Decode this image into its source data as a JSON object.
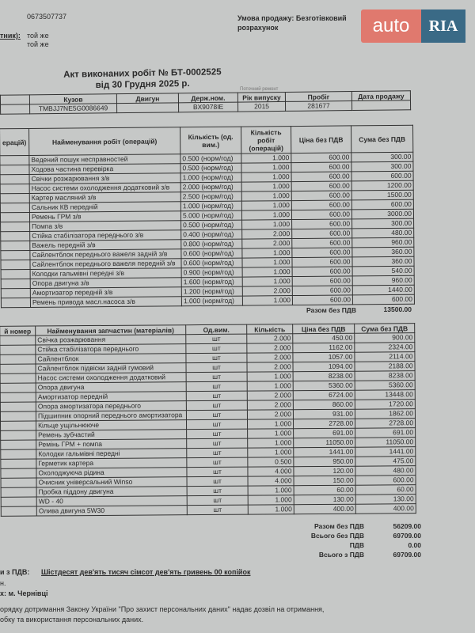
{
  "header": {
    "phone": "0673507737",
    "label_partial": "тник):",
    "payer1": "той же",
    "payer2": "той же",
    "sale_terms": "Умова продажу: Безготівковий розрахунок",
    "logo": {
      "text_left": "auto",
      "text_right": "RIA",
      "colors": {
        "left": "#e0796e",
        "right": "#3a6a86"
      }
    }
  },
  "title": {
    "line1": "Акт виконаних робіт № БТ-0002525",
    "line2": "від 30 Грудня 2025 р.",
    "note": "Поточний ремонт"
  },
  "vehicle": {
    "headers": [
      "",
      "Кузов",
      "Двигун",
      "Держ.ном.",
      "Рік випуску",
      "Пробіг",
      "Дата продажу"
    ],
    "values": [
      "",
      "TMBJJ7NE5G0086649",
      "",
      "BX9078IE",
      "2015",
      "281677",
      ""
    ]
  },
  "works": {
    "headers": [
      "ерацій)",
      "Найменування робіт (операцій)",
      "Кількість (од. вим.)",
      "Кількість робіт (операцій)",
      "Ціна без ПДВ",
      "Сума без ПДВ"
    ],
    "rows": [
      [
        "Ведений пошук несправностей",
        "0.500 (норм/год)",
        "1.000",
        "600.00",
        "300.00"
      ],
      [
        "Ходова частина перевірка",
        "0.500 (норм/год)",
        "1.000",
        "600.00",
        "300.00"
      ],
      [
        "Свічки розжарювання з/в",
        "1.000 (норм/год)",
        "1.000",
        "600.00",
        "600.00"
      ],
      [
        "Насос системи охолодження додатковий з/в",
        "2.000 (норм/год)",
        "1.000",
        "600.00",
        "1200.00"
      ],
      [
        "Картер масляний з/в",
        "2.500 (норм/год)",
        "1.000",
        "600.00",
        "1500.00"
      ],
      [
        "Сальник КВ передній",
        "1.000 (норм/год)",
        "1.000",
        "600.00",
        "600.00"
      ],
      [
        "Ремень ГРМ з/в",
        "5.000 (норм/год)",
        "1.000",
        "600.00",
        "3000.00"
      ],
      [
        "Помпа з/в",
        "0.500 (норм/год)",
        "1.000",
        "600.00",
        "300.00"
      ],
      [
        "Стійка стабілізатора переднього з/в",
        "0.400 (норм/год)",
        "2.000",
        "600.00",
        "480.00"
      ],
      [
        "Важель передній з/в",
        "0.800 (норм/год)",
        "2.000",
        "600.00",
        "960.00"
      ],
      [
        "Сайлентблок переднього важеля задній з/в",
        "0.600 (норм/год)",
        "1.000",
        "600.00",
        "360.00"
      ],
      [
        "Сайлентблок переднього важеля передній з/в",
        "0.600 (норм/год)",
        "1.000",
        "600.00",
        "360.00"
      ],
      [
        "Колодки гальмівні передні з/в",
        "0.900 (норм/год)",
        "1.000",
        "600.00",
        "540.00"
      ],
      [
        "Опора двигуна з/в",
        "1.600 (норм/год)",
        "1.000",
        "600.00",
        "960.00"
      ],
      [
        "Амортизатор передній з/в",
        "1.200 (норм/год)",
        "2.000",
        "600.00",
        "1440.00"
      ],
      [
        "Ремень привода масл.насоса з/в",
        "1.000 (норм/год)",
        "1.000",
        "600.00",
        "600.00"
      ]
    ],
    "total_label": "Разом без ПДВ",
    "total": "13500.00"
  },
  "parts": {
    "headers": [
      "й номер",
      "Найменування запчастин (матеріалів)",
      "Од.вим.",
      "Кількість",
      "Ціна без ПДВ",
      "Сума без ПДВ"
    ],
    "rows": [
      [
        "Свічка розжарювання",
        "шт",
        "2.000",
        "450.00",
        "900.00"
      ],
      [
        "Стійка стабілізатора переднього",
        "шт",
        "2.000",
        "1162.00",
        "2324.00"
      ],
      [
        "Сайлентблок",
        "шт",
        "2.000",
        "1057.00",
        "2114.00"
      ],
      [
        "Сайлентблок підвіски задній гумовий",
        "шт",
        "2.000",
        "1094.00",
        "2188.00"
      ],
      [
        "Насос системи охолодження додатковий",
        "шт",
        "1.000",
        "8238.00",
        "8238.00"
      ],
      [
        "Опора двигуна",
        "шт",
        "1.000",
        "5360.00",
        "5360.00"
      ],
      [
        "Амортизатор передній",
        "шт",
        "2.000",
        "6724.00",
        "13448.00"
      ],
      [
        "Опора амортизатора переднього",
        "шт",
        "2.000",
        "860.00",
        "1720.00"
      ],
      [
        "Підшипник опорний переднього амортизатора",
        "шт",
        "2.000",
        "931.00",
        "1862.00"
      ],
      [
        "Кільце ущільнююче",
        "шт",
        "1.000",
        "2728.00",
        "2728.00"
      ],
      [
        "Ремень зубчастий",
        "шт",
        "1.000",
        "691.00",
        "691.00"
      ],
      [
        "Ремінь ГРМ + помпа",
        "шт",
        "1.000",
        "11050.00",
        "11050.00"
      ],
      [
        "Колодки гальмівні передні",
        "шт",
        "1.000",
        "1441.00",
        "1441.00"
      ],
      [
        "Герметик картера",
        "шт",
        "0.500",
        "950.00",
        "475.00"
      ],
      [
        "Охолоджуюча рідина",
        "шт",
        "4.000",
        "120.00",
        "480.00"
      ],
      [
        "Очисник універсальний Winso",
        "шт",
        "4.000",
        "150.00",
        "600.00"
      ],
      [
        "Пробка піддону двигуна",
        "шт",
        "1.000",
        "60.00",
        "60.00"
      ],
      [
        "WD - 40",
        "шт",
        "1.000",
        "130.00",
        "130.00"
      ],
      [
        "Олива двигуна 5W30",
        "шт",
        "1.000",
        "400.00",
        "400.00"
      ]
    ]
  },
  "totals": [
    {
      "label": "Разом без ПДВ",
      "value": "56209.00"
    },
    {
      "label": "Всього без ПДВ",
      "value": "69709.00"
    },
    {
      "label": "ПДВ",
      "value": "0.00"
    },
    {
      "label": "Всього з ПДВ",
      "value": "69709.00"
    }
  ],
  "footer": {
    "words_label": "и з ПДВ:",
    "words": "Шістдесят дев'ять тисяч сімсот дев'ять гривень 00 копійок",
    "line_partial": "н.",
    "place": "х: м. Чернівці",
    "consent1": "орядку дотримання Закону України \"Про захист персональних даних\" надає дозвіл на отримання,",
    "consent2": "обку та використання персональних даних."
  }
}
